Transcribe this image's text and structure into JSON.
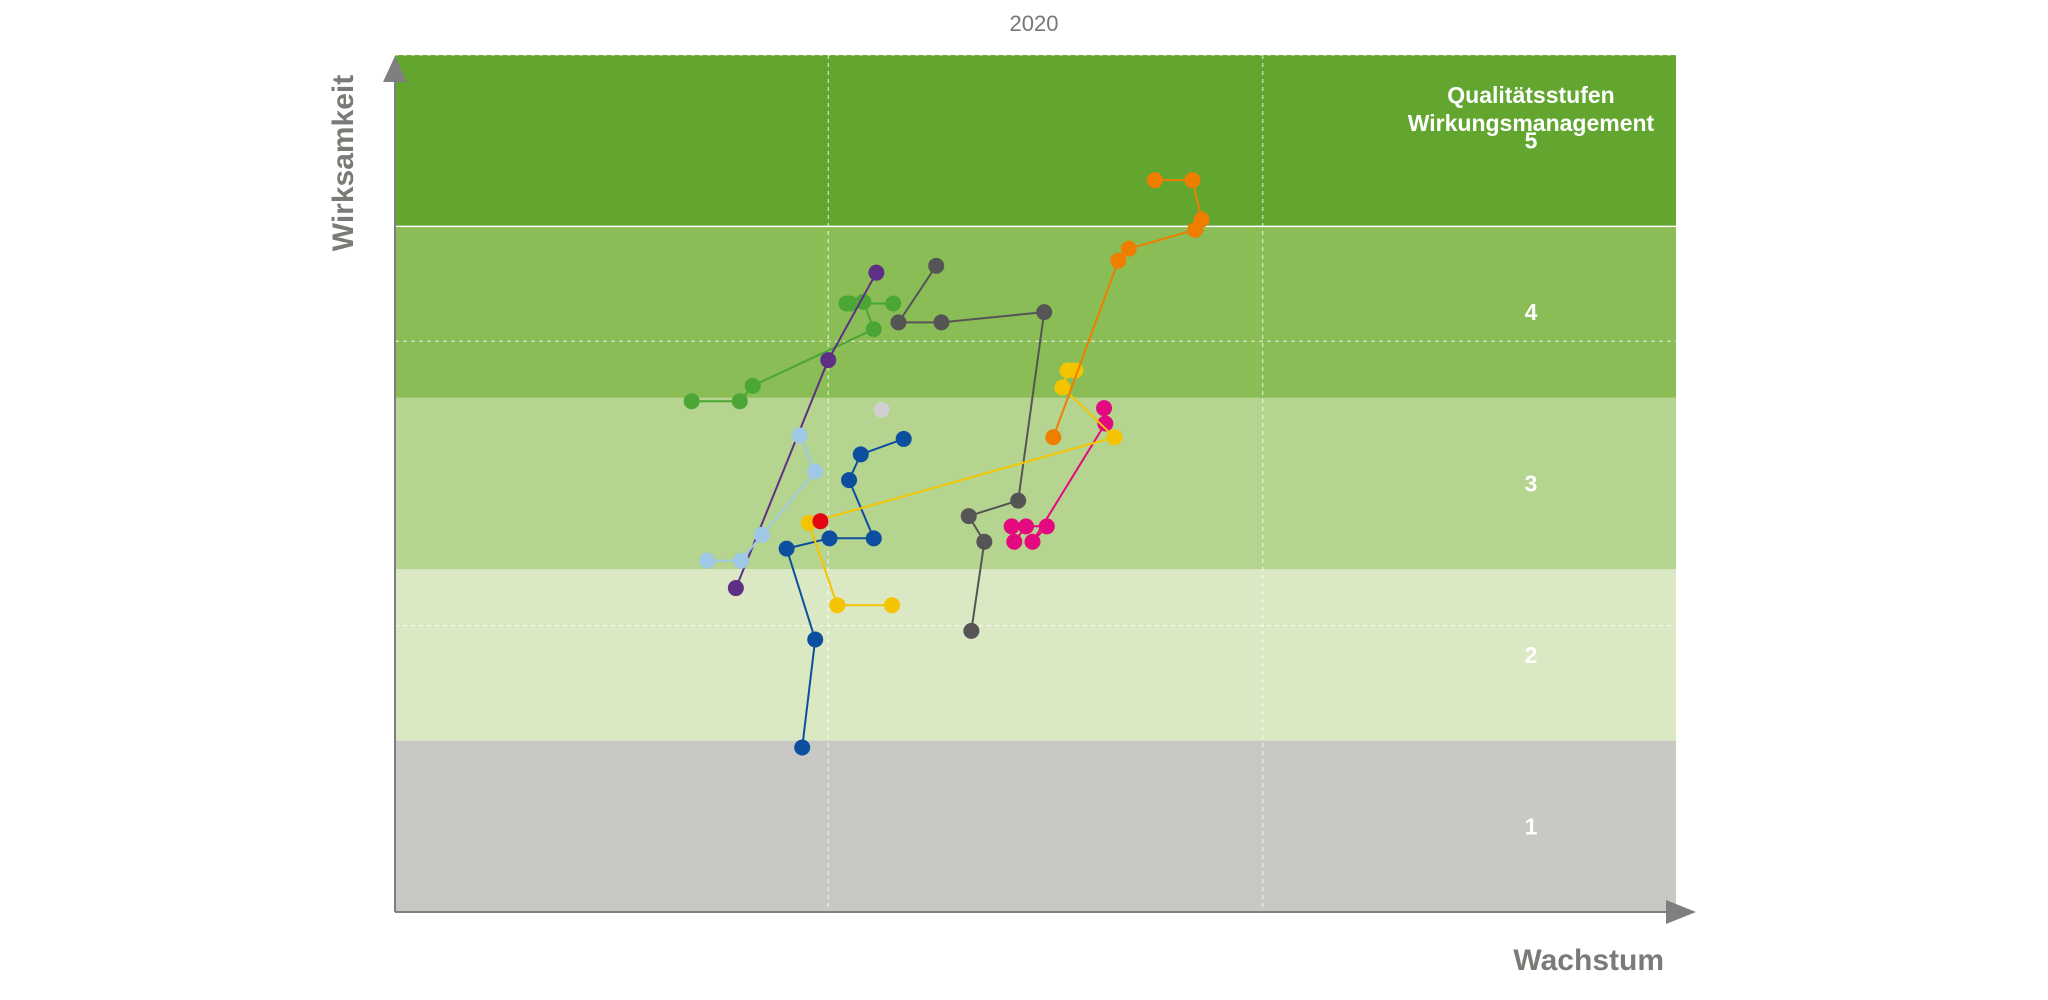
{
  "chart_data": {
    "type": "scatter",
    "title": "2020",
    "xlabel": "Wachstum",
    "ylabel": "Wirksamkeit",
    "xlim": [
      0,
      100
    ],
    "ylim": [
      0,
      5
    ],
    "grid": true,
    "legend": {
      "title_line1": "Qualitätsstufen",
      "title_line2": "Wirkungsmanagement"
    },
    "bands": [
      {
        "label": "1",
        "from": 0,
        "to": 1,
        "color": "#c8c9c5"
      },
      {
        "label": "2",
        "from": 1,
        "to": 2,
        "color": "#dae8c4"
      },
      {
        "label": "3",
        "from": 2,
        "to": 3,
        "color": "#b5d48f"
      },
      {
        "label": "4",
        "from": 3,
        "to": 4,
        "color": "#8bbd56"
      },
      {
        "label": "5",
        "from": 4,
        "to": 5,
        "color": "#62a630"
      }
    ],
    "series": [
      {
        "color": "#4ba636",
        "points": [
          [
            22.8,
            2.98
          ],
          [
            26.5,
            2.98
          ],
          [
            27.5,
            3.07
          ],
          [
            36.8,
            3.4
          ],
          [
            36.0,
            3.56
          ],
          [
            35.0,
            3.55
          ],
          [
            34.7,
            3.55
          ],
          [
            38.3,
            3.55
          ]
        ]
      },
      {
        "color": "#5e2f86",
        "points": [
          [
            26.2,
            1.89
          ],
          [
            33.3,
            3.22
          ],
          [
            37.0,
            3.73
          ]
        ]
      },
      {
        "color": "#9fc8e6",
        "points": [
          [
            24.0,
            2.05
          ],
          [
            26.6,
            2.05
          ],
          [
            28.2,
            2.2
          ],
          [
            32.3,
            2.57
          ],
          [
            31.1,
            2.78
          ]
        ]
      },
      {
        "color": "#0b4f9e",
        "points": [
          [
            31.3,
            0.96
          ],
          [
            32.3,
            1.59
          ],
          [
            30.1,
            2.12
          ],
          [
            33.4,
            2.18
          ],
          [
            36.8,
            2.18
          ],
          [
            34.9,
            2.52
          ],
          [
            35.8,
            2.67
          ],
          [
            39.1,
            2.76
          ]
        ]
      },
      {
        "color": "#555555",
        "points": [
          [
            44.3,
            1.64
          ],
          [
            45.3,
            2.16
          ],
          [
            44.1,
            2.31
          ],
          [
            47.9,
            2.4
          ],
          [
            49.9,
            3.5
          ],
          [
            42.0,
            3.44
          ],
          [
            38.7,
            3.44
          ],
          [
            41.6,
            3.77
          ]
        ]
      },
      {
        "color": "#e5097f",
        "points": [
          [
            47.6,
            2.16
          ],
          [
            48.5,
            2.25
          ],
          [
            47.4,
            2.25
          ],
          [
            50.1,
            2.25
          ],
          [
            49.0,
            2.16
          ],
          [
            54.6,
            2.85
          ],
          [
            54.5,
            2.94
          ]
        ]
      },
      {
        "color": "#f5c400",
        "points": [
          [
            38.2,
            1.79
          ],
          [
            34.0,
            1.79
          ],
          [
            31.8,
            2.27
          ],
          [
            55.3,
            2.77
          ],
          [
            51.3,
            3.06
          ],
          [
            51.7,
            3.16
          ],
          [
            52.3,
            3.16
          ]
        ]
      },
      {
        "color": "#ef7d00",
        "points": [
          [
            50.6,
            2.77
          ],
          [
            55.6,
            3.8
          ],
          [
            56.4,
            3.87
          ],
          [
            61.5,
            3.98
          ],
          [
            62.0,
            4.04
          ],
          [
            61.3,
            4.27
          ],
          [
            58.4,
            4.27
          ]
        ]
      },
      {
        "color": "#d0d0d0",
        "points": [
          [
            37.4,
            2.93
          ]
        ]
      },
      {
        "color": "#e30613",
        "points": [
          [
            32.7,
            2.28
          ]
        ]
      }
    ]
  }
}
